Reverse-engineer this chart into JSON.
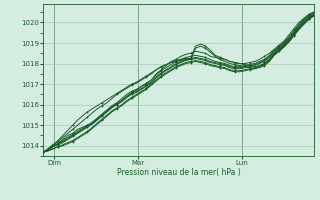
{
  "xlabel": "Pression niveau de la mer( hPa )",
  "bg_color": "#d4ede0",
  "grid_color": "#a8c8b4",
  "line_color": "#1a5c28",
  "ylim": [
    1013.5,
    1020.9
  ],
  "yticks": [
    1014,
    1015,
    1016,
    1017,
    1018,
    1019,
    1020
  ],
  "day_labels": [
    "Dim",
    "Mar",
    "Lun"
  ],
  "day_positions": [
    0.04,
    0.35,
    0.735
  ],
  "xlim": [
    0.0,
    1.0
  ],
  "series": [
    [
      1013.7,
      1013.8,
      1014.0,
      1014.1,
      1014.3,
      1014.5,
      1014.6,
      1014.8,
      1014.9,
      1015.0,
      1015.1,
      1015.3,
      1015.5,
      1015.7,
      1015.9,
      1016.0,
      1016.2,
      1016.4,
      1016.6,
      1016.7,
      1016.9,
      1017.0,
      1017.2,
      1017.5,
      1017.7,
      1017.9,
      1018.1,
      1018.2,
      1018.35,
      1018.45,
      1018.5,
      1018.6,
      1018.55,
      1018.5,
      1018.35,
      1018.3,
      1018.25,
      1018.2,
      1018.1,
      1018.05,
      1018.0,
      1018.0,
      1018.05,
      1018.1,
      1018.2,
      1018.35,
      1018.5,
      1018.7,
      1018.9,
      1019.1,
      1019.4,
      1019.7,
      1020.0,
      1020.2,
      1020.4,
      1020.5
    ],
    [
      1013.7,
      1013.8,
      1014.0,
      1014.1,
      1014.25,
      1014.4,
      1014.55,
      1014.7,
      1014.85,
      1015.0,
      1015.15,
      1015.35,
      1015.55,
      1015.75,
      1015.95,
      1016.1,
      1016.3,
      1016.5,
      1016.65,
      1016.75,
      1016.9,
      1017.05,
      1017.2,
      1017.45,
      1017.65,
      1017.8,
      1017.95,
      1018.1,
      1018.2,
      1018.3,
      1018.35,
      1018.4,
      1018.35,
      1018.3,
      1018.2,
      1018.1,
      1018.05,
      1018.0,
      1017.9,
      1017.85,
      1017.85,
      1017.9,
      1017.95,
      1018.0,
      1018.1,
      1018.2,
      1018.4,
      1018.65,
      1018.85,
      1019.05,
      1019.3,
      1019.6,
      1019.9,
      1020.15,
      1020.35,
      1020.5
    ],
    [
      1013.7,
      1013.8,
      1013.95,
      1014.1,
      1014.2,
      1014.35,
      1014.5,
      1014.65,
      1014.8,
      1014.95,
      1015.1,
      1015.3,
      1015.5,
      1015.7,
      1015.9,
      1016.05,
      1016.2,
      1016.4,
      1016.55,
      1016.65,
      1016.8,
      1016.95,
      1017.1,
      1017.35,
      1017.55,
      1017.7,
      1017.85,
      1018.0,
      1018.1,
      1018.2,
      1018.25,
      1018.3,
      1018.25,
      1018.2,
      1018.1,
      1018.05,
      1018.0,
      1017.95,
      1017.85,
      1017.8,
      1017.8,
      1017.85,
      1017.9,
      1017.95,
      1018.05,
      1018.15,
      1018.35,
      1018.6,
      1018.8,
      1019.0,
      1019.25,
      1019.55,
      1019.85,
      1020.1,
      1020.3,
      1020.45
    ],
    [
      1013.7,
      1013.8,
      1013.95,
      1014.05,
      1014.15,
      1014.3,
      1014.45,
      1014.6,
      1014.75,
      1014.9,
      1015.05,
      1015.25,
      1015.45,
      1015.65,
      1015.85,
      1016.0,
      1016.15,
      1016.35,
      1016.5,
      1016.6,
      1016.75,
      1016.9,
      1017.05,
      1017.3,
      1017.5,
      1017.65,
      1017.8,
      1017.95,
      1018.05,
      1018.15,
      1018.2,
      1018.25,
      1018.2,
      1018.15,
      1018.05,
      1018.0,
      1017.95,
      1017.9,
      1017.8,
      1017.75,
      1017.75,
      1017.8,
      1017.85,
      1017.9,
      1018.0,
      1018.1,
      1018.3,
      1018.55,
      1018.75,
      1018.95,
      1019.2,
      1019.5,
      1019.8,
      1020.05,
      1020.25,
      1020.4
    ],
    [
      1013.7,
      1013.75,
      1013.85,
      1013.95,
      1014.05,
      1014.15,
      1014.25,
      1014.4,
      1014.55,
      1014.7,
      1014.9,
      1015.1,
      1015.3,
      1015.5,
      1015.7,
      1015.85,
      1016.0,
      1016.2,
      1016.35,
      1016.5,
      1016.65,
      1016.8,
      1017.0,
      1017.2,
      1017.4,
      1017.55,
      1017.7,
      1017.85,
      1017.95,
      1018.05,
      1018.1,
      1018.15,
      1018.1,
      1018.05,
      1017.95,
      1017.9,
      1017.85,
      1017.8,
      1017.7,
      1017.65,
      1017.65,
      1017.7,
      1017.75,
      1017.8,
      1017.9,
      1018.0,
      1018.2,
      1018.5,
      1018.7,
      1018.9,
      1019.15,
      1019.45,
      1019.75,
      1020.0,
      1020.2,
      1020.35
    ],
    [
      1013.7,
      1013.75,
      1013.85,
      1013.95,
      1014.0,
      1014.1,
      1014.2,
      1014.35,
      1014.5,
      1014.65,
      1014.85,
      1015.05,
      1015.25,
      1015.45,
      1015.65,
      1015.8,
      1015.95,
      1016.15,
      1016.3,
      1016.45,
      1016.6,
      1016.75,
      1016.95,
      1017.15,
      1017.35,
      1017.5,
      1017.65,
      1017.8,
      1017.9,
      1018.0,
      1018.05,
      1018.1,
      1018.05,
      1018.0,
      1017.9,
      1017.85,
      1017.8,
      1017.75,
      1017.65,
      1017.6,
      1017.6,
      1017.65,
      1017.7,
      1017.75,
      1017.85,
      1017.95,
      1018.15,
      1018.45,
      1018.65,
      1018.85,
      1019.1,
      1019.4,
      1019.7,
      1019.95,
      1020.15,
      1020.3
    ],
    [
      1013.7,
      1013.85,
      1014.05,
      1014.2,
      1014.4,
      1014.6,
      1014.8,
      1015.0,
      1015.2,
      1015.4,
      1015.6,
      1015.8,
      1015.95,
      1016.1,
      1016.3,
      1016.5,
      1016.65,
      1016.8,
      1016.95,
      1017.05,
      1017.2,
      1017.35,
      1017.5,
      1017.7,
      1017.85,
      1017.95,
      1018.05,
      1018.15,
      1018.2,
      1018.25,
      1018.25,
      1018.85,
      1018.95,
      1018.85,
      1018.65,
      1018.4,
      1018.3,
      1018.2,
      1018.1,
      1018.05,
      1018.0,
      1017.95,
      1017.9,
      1017.85,
      1017.9,
      1018.0,
      1018.2,
      1018.45,
      1018.65,
      1018.85,
      1019.1,
      1019.4,
      1019.7,
      1019.95,
      1020.2,
      1020.4
    ],
    [
      1013.7,
      1013.85,
      1014.05,
      1014.25,
      1014.5,
      1014.75,
      1015.0,
      1015.25,
      1015.45,
      1015.65,
      1015.8,
      1015.95,
      1016.1,
      1016.25,
      1016.4,
      1016.55,
      1016.7,
      1016.85,
      1017.0,
      1017.1,
      1017.25,
      1017.4,
      1017.55,
      1017.7,
      1017.85,
      1017.95,
      1018.05,
      1018.1,
      1018.15,
      1018.2,
      1018.2,
      1018.75,
      1018.85,
      1018.75,
      1018.55,
      1018.35,
      1018.2,
      1018.1,
      1018.0,
      1017.95,
      1017.9,
      1017.85,
      1017.8,
      1017.75,
      1017.8,
      1017.9,
      1018.1,
      1018.4,
      1018.6,
      1018.8,
      1019.05,
      1019.35,
      1019.65,
      1019.9,
      1020.15,
      1020.35
    ]
  ]
}
